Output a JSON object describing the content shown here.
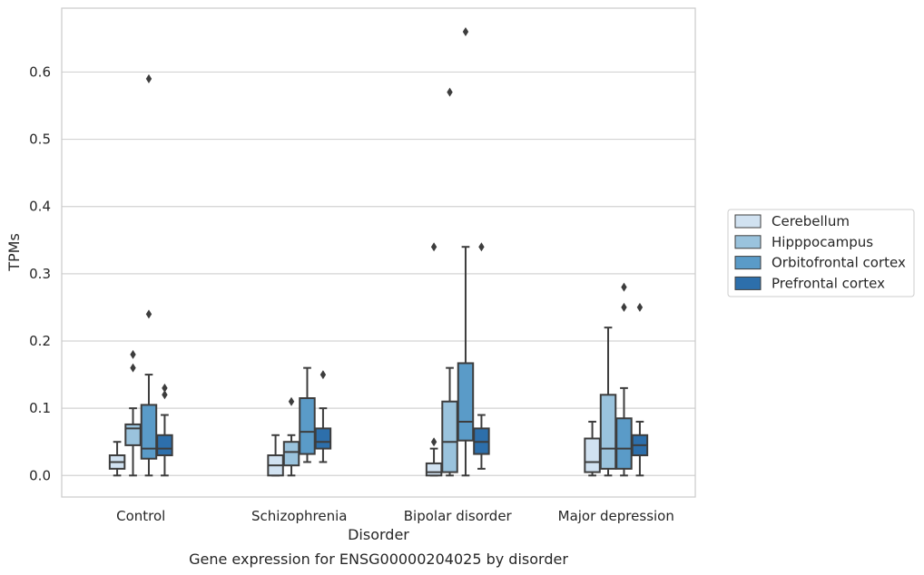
{
  "caption": "Gene expression for ENSG00000204025 by disorder",
  "chart_data": {
    "type": "box",
    "xlabel": "Disorder",
    "ylabel": "TPMs",
    "categories": [
      "Control",
      "Schizophrenia",
      "Bipolar disorder",
      "Major depression"
    ],
    "ylim": [
      -0.032,
      0.695
    ],
    "yticks": [
      0.0,
      0.1,
      0.2,
      0.3,
      0.4,
      0.5,
      0.6
    ],
    "ytick_labels": [
      "0.0",
      "0.1",
      "0.2",
      "0.3",
      "0.4",
      "0.5",
      "0.6"
    ],
    "grid": "horizontal",
    "legend_position": "right",
    "series": [
      {
        "name": "Cerebellum",
        "color": "#d1e2f1",
        "boxes": [
          {
            "whisker_low": 0.0,
            "q1": 0.01,
            "median": 0.02,
            "q3": 0.03,
            "whisker_high": 0.05,
            "fliers": []
          },
          {
            "whisker_low": 0.0,
            "q1": 0.0,
            "median": 0.015,
            "q3": 0.03,
            "whisker_high": 0.06,
            "fliers": []
          },
          {
            "whisker_low": 0.0,
            "q1": 0.0,
            "median": 0.005,
            "q3": 0.018,
            "whisker_high": 0.04,
            "fliers": [
              0.05,
              0.34
            ]
          },
          {
            "whisker_low": 0.0,
            "q1": 0.005,
            "median": 0.02,
            "q3": 0.055,
            "whisker_high": 0.08,
            "fliers": []
          }
        ]
      },
      {
        "name": "Hipppocampus",
        "color": "#9ac3dd",
        "boxes": [
          {
            "whisker_low": 0.0,
            "q1": 0.045,
            "median": 0.07,
            "q3": 0.076,
            "whisker_high": 0.1,
            "fliers": [
              0.16,
              0.18
            ]
          },
          {
            "whisker_low": 0.0,
            "q1": 0.015,
            "median": 0.035,
            "q3": 0.05,
            "whisker_high": 0.06,
            "fliers": [
              0.11
            ]
          },
          {
            "whisker_low": 0.0,
            "q1": 0.005,
            "median": 0.05,
            "q3": 0.11,
            "whisker_high": 0.16,
            "fliers": [
              0.57
            ]
          },
          {
            "whisker_low": 0.0,
            "q1": 0.01,
            "median": 0.04,
            "q3": 0.12,
            "whisker_high": 0.22,
            "fliers": []
          }
        ]
      },
      {
        "name": "Orbitofrontal cortex",
        "color": "#5a9bc8",
        "boxes": [
          {
            "whisker_low": 0.0,
            "q1": 0.025,
            "median": 0.04,
            "q3": 0.105,
            "whisker_high": 0.15,
            "fliers": [
              0.24,
              0.59
            ]
          },
          {
            "whisker_low": 0.02,
            "q1": 0.032,
            "median": 0.065,
            "q3": 0.115,
            "whisker_high": 0.16,
            "fliers": []
          },
          {
            "whisker_low": 0.0,
            "q1": 0.052,
            "median": 0.08,
            "q3": 0.167,
            "whisker_high": 0.34,
            "fliers": [
              0.66
            ]
          },
          {
            "whisker_low": 0.0,
            "q1": 0.01,
            "median": 0.04,
            "q3": 0.085,
            "whisker_high": 0.13,
            "fliers": [
              0.25,
              0.28
            ]
          }
        ]
      },
      {
        "name": "Prefrontal cortex",
        "color": "#2d6fab",
        "boxes": [
          {
            "whisker_low": 0.0,
            "q1": 0.03,
            "median": 0.04,
            "q3": 0.06,
            "whisker_high": 0.09,
            "fliers": [
              0.12,
              0.13
            ]
          },
          {
            "whisker_low": 0.02,
            "q1": 0.04,
            "median": 0.05,
            "q3": 0.07,
            "whisker_high": 0.1,
            "fliers": [
              0.15
            ]
          },
          {
            "whisker_low": 0.01,
            "q1": 0.032,
            "median": 0.05,
            "q3": 0.07,
            "whisker_high": 0.09,
            "fliers": [
              0.34
            ]
          },
          {
            "whisker_low": 0.0,
            "q1": 0.03,
            "median": 0.045,
            "q3": 0.06,
            "whisker_high": 0.08,
            "fliers": [
              0.25
            ]
          }
        ]
      }
    ]
  }
}
